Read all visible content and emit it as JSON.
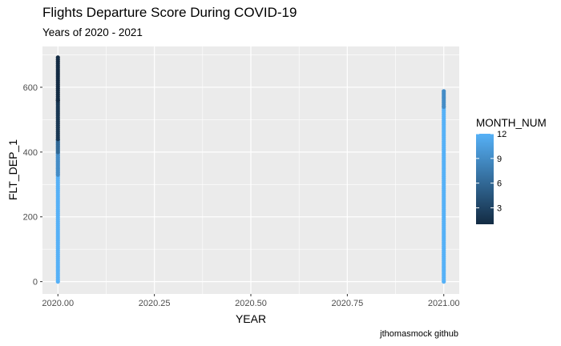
{
  "chart_data": {
    "type": "scatter",
    "title": "Flights Departure Score During COVID-19",
    "subtitle": "Years of 2020 - 2021",
    "xlabel": "YEAR",
    "ylabel": "FLT_DEP_1",
    "caption": "jthomasmock github",
    "xlim": [
      2019.96,
      2021.04
    ],
    "ylim": [
      -38,
      726
    ],
    "x_ticks": [
      2020.0,
      2020.25,
      2020.5,
      2020.75,
      2021.0
    ],
    "x_tick_labels": [
      "2020.00",
      "2020.25",
      "2020.50",
      "2020.75",
      "2021.00"
    ],
    "y_ticks": [
      0,
      200,
      400,
      600
    ],
    "y_tick_labels": [
      "0",
      "200",
      "400",
      "600"
    ],
    "grid": true,
    "legend": {
      "title": "MONTH_NUM",
      "placement": "right",
      "min": 1,
      "max": 12,
      "ticks": [
        3,
        6,
        9,
        12
      ],
      "tick_labels": [
        "3",
        "6",
        "9",
        "12"
      ],
      "color_low": "#132B43",
      "color_high": "#56B1F7"
    },
    "series": [
      {
        "x": 2020.0,
        "y_range": [
          0,
          695
        ],
        "segments": [
          {
            "y_from": 0,
            "y_to": 440,
            "month": 12
          },
          {
            "y_from": 330,
            "y_to": 400,
            "month": 9
          },
          {
            "y_from": 400,
            "y_to": 440,
            "month": 6
          },
          {
            "y_from": 440,
            "y_to": 560,
            "month": 2
          },
          {
            "y_from": 560,
            "y_to": 695,
            "month": 1
          }
        ]
      },
      {
        "x": 2021.0,
        "y_range": [
          0,
          592
        ],
        "segments": [
          {
            "y_from": 0,
            "y_to": 540,
            "month": 12
          },
          {
            "y_from": 540,
            "y_to": 592,
            "month": 9
          }
        ]
      }
    ]
  }
}
